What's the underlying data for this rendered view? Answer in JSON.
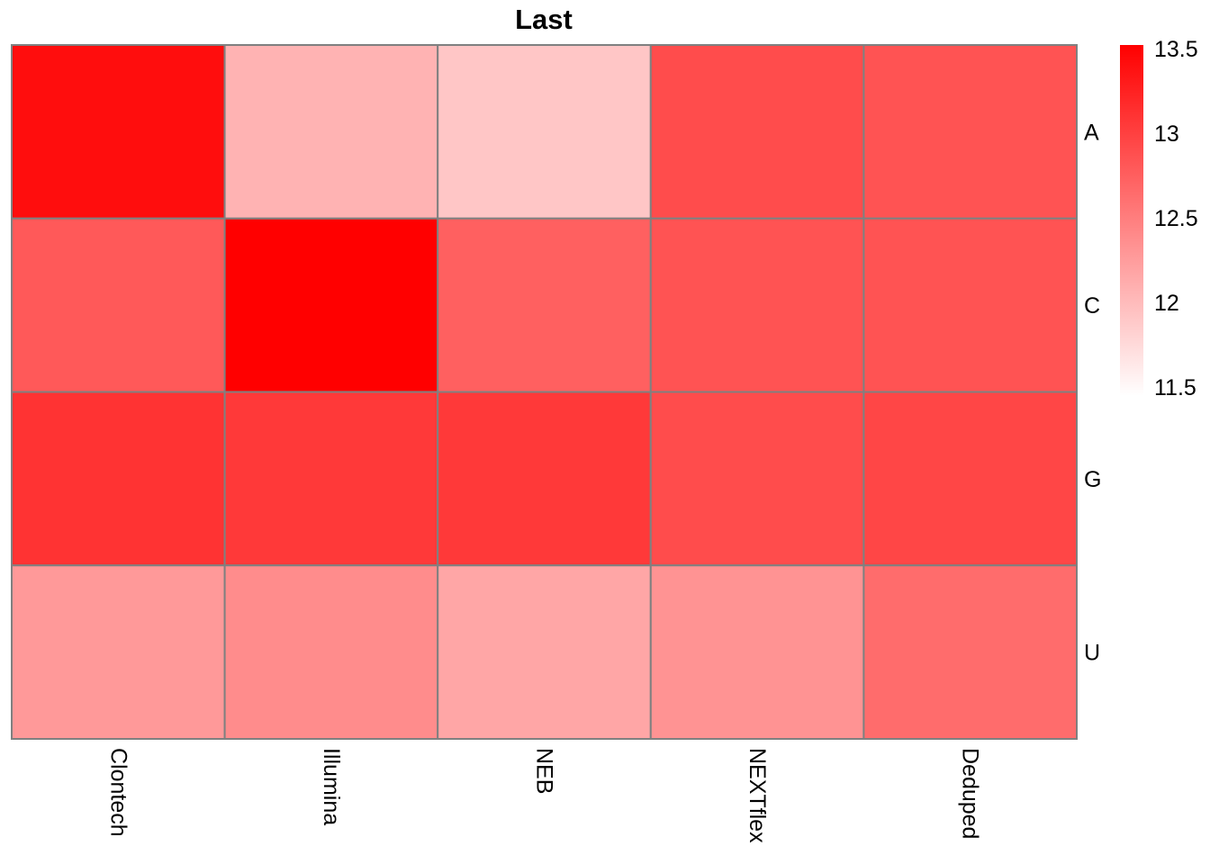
{
  "chart_data": {
    "type": "heatmap",
    "title": "Last",
    "columns": [
      "Clontech",
      "Illumina",
      "NEB",
      "NEXTflex",
      "Deduped"
    ],
    "rows": [
      "A",
      "C",
      "G",
      "U"
    ],
    "values": [
      [
        13.4,
        12.1,
        11.95,
        12.9,
        12.85
      ],
      [
        12.8,
        13.55,
        12.75,
        12.85,
        12.85
      ],
      [
        13.1,
        13.05,
        13.05,
        12.9,
        12.95
      ],
      [
        12.3,
        12.4,
        12.2,
        12.35,
        12.65
      ]
    ],
    "colorbar": {
      "ticks": [
        "13.5",
        "13",
        "12.5",
        "12",
        "11.5"
      ],
      "min": 11.5,
      "max": 13.5,
      "low_color": "#ffffff",
      "high_color": "#ff0000"
    },
    "cell_border_color": "#808080",
    "grid": true,
    "legend": "right"
  }
}
